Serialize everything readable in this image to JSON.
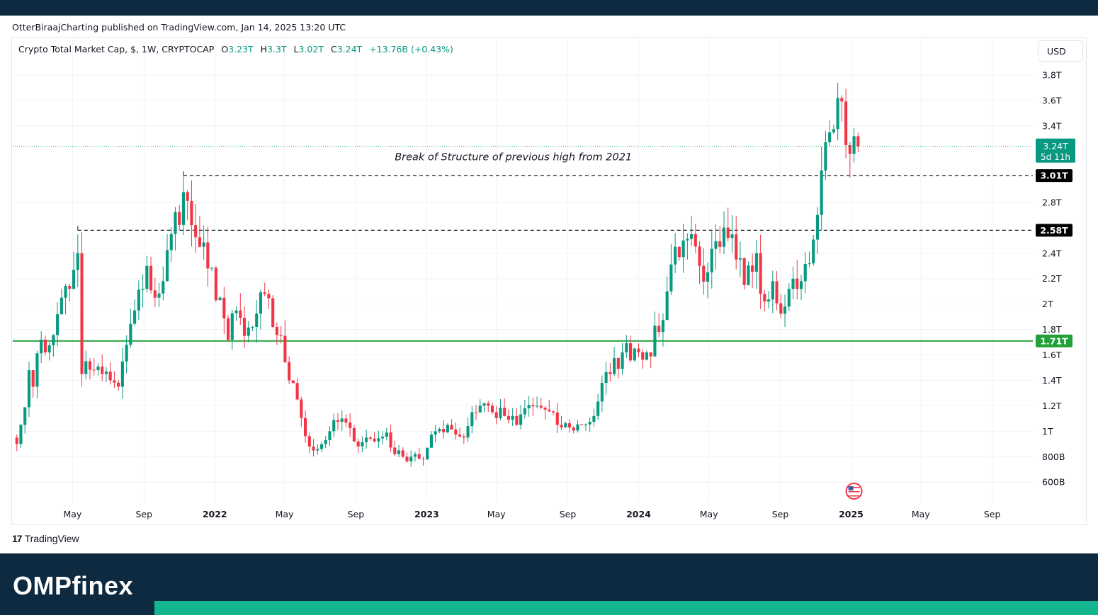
{
  "header": {
    "published_line": "OtterBiraajCharting published on TradingView.com, Jan 14, 2025 13:20 UTC"
  },
  "legend": {
    "symbol": "Crypto Total Market Cap, $, 1W, CRYPTOCAP",
    "open_label": "O",
    "open": "3.23T",
    "high_label": "H",
    "high": "3.3T",
    "low_label": "L",
    "low": "3.02T",
    "close_label": "C",
    "close": "3.24T",
    "change": "+13.76B (+0.43%)"
  },
  "currency_button": "USD",
  "tradingview_logo": {
    "mark": "17",
    "text": "TradingView"
  },
  "brand": {
    "text": "OMPfinex"
  },
  "colors": {
    "up": "#089981",
    "down": "#f23645",
    "support": "#22a139",
    "frame": "#0e2a40",
    "brand_accent": "#14b58f",
    "grid": "#f0f3fa"
  },
  "chart_data": {
    "type": "candlestick",
    "timeframe": "1W",
    "y_unit": "USD",
    "yticks": [
      {
        "value": 3.8,
        "label": "3.8T"
      },
      {
        "value": 3.6,
        "label": "3.6T"
      },
      {
        "value": 3.4,
        "label": "3.4T"
      },
      {
        "value": 2.8,
        "label": "2.8T"
      },
      {
        "value": 2.4,
        "label": "2.4T"
      },
      {
        "value": 2.2,
        "label": "2.2T"
      },
      {
        "value": 2.0,
        "label": "2T"
      },
      {
        "value": 1.8,
        "label": "1.8T"
      },
      {
        "value": 1.6,
        "label": "1.6T"
      },
      {
        "value": 1.4,
        "label": "1.4T"
      },
      {
        "value": 1.2,
        "label": "1.2T"
      },
      {
        "value": 1.0,
        "label": "1T"
      },
      {
        "value": 0.8,
        "label": "800B"
      },
      {
        "value": 0.6,
        "label": "600B"
      }
    ],
    "ylim": [
      0.44,
      3.99
    ],
    "xticks": [
      {
        "date": "2021-05",
        "label": "May",
        "bold": false
      },
      {
        "date": "2021-09",
        "label": "Sep",
        "bold": false
      },
      {
        "date": "2022-01",
        "label": "2022",
        "bold": true
      },
      {
        "date": "2022-05",
        "label": "May",
        "bold": false
      },
      {
        "date": "2022-09",
        "label": "Sep",
        "bold": false
      },
      {
        "date": "2023-01",
        "label": "2023",
        "bold": true
      },
      {
        "date": "2023-05",
        "label": "May",
        "bold": false
      },
      {
        "date": "2023-09",
        "label": "Sep",
        "bold": false
      },
      {
        "date": "2024-01",
        "label": "2024",
        "bold": true
      },
      {
        "date": "2024-05",
        "label": "May",
        "bold": false
      },
      {
        "date": "2024-09",
        "label": "Sep",
        "bold": false
      },
      {
        "date": "2025-01",
        "label": "2025",
        "bold": true
      },
      {
        "date": "2025-05",
        "label": "May",
        "bold": false
      },
      {
        "date": "2025-09",
        "label": "Sep",
        "bold": false
      }
    ],
    "xlim": [
      "2021-01-18",
      "2025-11-10"
    ],
    "current_price": {
      "value": 3.24,
      "label": "3.24T",
      "countdown": "5d 11h"
    },
    "levels": [
      {
        "value": 3.01,
        "label": "3.01T",
        "style": "dashed",
        "from": "2021-11-08"
      },
      {
        "value": 2.58,
        "label": "2.58T",
        "style": "dashed",
        "from": "2021-05-10"
      },
      {
        "value": 1.71,
        "label": "1.71T",
        "style": "solid",
        "from": "2021-01-18"
      }
    ],
    "annotation": {
      "text": "Break of Structure of previous high from 2021",
      "date": "2023-05-01",
      "value": 3.13
    },
    "event_flag": {
      "date": "2025-01-06",
      "label": "US economic event"
    },
    "anchors": [
      [
        "2021-01-18",
        0.95
      ],
      [
        "2021-01-25",
        0.9
      ],
      [
        "2021-02-01",
        1.05
      ],
      [
        "2021-02-15",
        1.48
      ],
      [
        "2021-02-22",
        1.35
      ],
      [
        "2021-03-08",
        1.72
      ],
      [
        "2021-03-15",
        1.62
      ],
      [
        "2021-04-05",
        1.92
      ],
      [
        "2021-04-12",
        2.05
      ],
      [
        "2021-04-26",
        2.12
      ],
      [
        "2021-05-10",
        2.4
      ],
      [
        "2021-05-17",
        1.45
      ],
      [
        "2021-05-24",
        1.55
      ],
      [
        "2021-06-07",
        1.48
      ],
      [
        "2021-06-21",
        1.45
      ],
      [
        "2021-07-05",
        1.4
      ],
      [
        "2021-07-19",
        1.35
      ],
      [
        "2021-08-02",
        1.68
      ],
      [
        "2021-08-16",
        1.95
      ],
      [
        "2021-08-30",
        2.12
      ],
      [
        "2021-09-06",
        2.3
      ],
      [
        "2021-09-20",
        2.05
      ],
      [
        "2021-10-04",
        2.18
      ],
      [
        "2021-10-18",
        2.55
      ],
      [
        "2021-11-08",
        2.88
      ],
      [
        "2021-11-22",
        2.62
      ],
      [
        "2021-12-06",
        2.45
      ],
      [
        "2021-12-20",
        2.28
      ],
      [
        "2022-01-10",
        2.05
      ],
      [
        "2022-01-24",
        1.72
      ],
      [
        "2022-02-07",
        1.95
      ],
      [
        "2022-02-21",
        1.75
      ],
      [
        "2022-03-07",
        1.82
      ],
      [
        "2022-03-28",
        2.08
      ],
      [
        "2022-04-11",
        1.82
      ],
      [
        "2022-04-25",
        1.75
      ],
      [
        "2022-05-09",
        1.4
      ],
      [
        "2022-05-23",
        1.25
      ],
      [
        "2022-06-13",
        0.88
      ],
      [
        "2022-06-27",
        0.86
      ],
      [
        "2022-07-18",
        1.0
      ],
      [
        "2022-08-08",
        1.1
      ],
      [
        "2022-08-29",
        0.92
      ],
      [
        "2022-09-19",
        0.95
      ],
      [
        "2022-10-03",
        0.92
      ],
      [
        "2022-10-24",
        0.99
      ],
      [
        "2022-11-07",
        0.82
      ],
      [
        "2022-11-21",
        0.8
      ],
      [
        "2022-12-12",
        0.82
      ],
      [
        "2022-12-26",
        0.78
      ],
      [
        "2023-01-16",
        1.0
      ],
      [
        "2023-02-06",
        1.05
      ],
      [
        "2023-03-06",
        0.95
      ],
      [
        "2023-03-20",
        1.15
      ],
      [
        "2023-04-10",
        1.22
      ],
      [
        "2023-04-24",
        1.15
      ],
      [
        "2023-05-15",
        1.12
      ],
      [
        "2023-06-05",
        1.05
      ],
      [
        "2023-06-19",
        1.18
      ],
      [
        "2023-07-10",
        1.2
      ],
      [
        "2023-07-24",
        1.17
      ],
      [
        "2023-08-14",
        1.05
      ],
      [
        "2023-09-04",
        1.03
      ],
      [
        "2023-09-25",
        1.05
      ],
      [
        "2023-10-16",
        1.12
      ],
      [
        "2023-10-30",
        1.38
      ],
      [
        "2023-11-13",
        1.45
      ],
      [
        "2023-12-04",
        1.62
      ],
      [
        "2023-12-25",
        1.65
      ],
      [
        "2024-01-15",
        1.62
      ],
      [
        "2024-02-05",
        1.78
      ],
      [
        "2024-02-19",
        2.1
      ],
      [
        "2024-03-04",
        2.45
      ],
      [
        "2024-03-18",
        2.5
      ],
      [
        "2024-04-01",
        2.55
      ],
      [
        "2024-04-15",
        2.3
      ],
      [
        "2024-04-29",
        2.25
      ],
      [
        "2024-05-20",
        2.45
      ],
      [
        "2024-06-03",
        2.52
      ],
      [
        "2024-06-17",
        2.35
      ],
      [
        "2024-07-01",
        2.15
      ],
      [
        "2024-07-22",
        2.4
      ],
      [
        "2024-08-05",
        2.02
      ],
      [
        "2024-08-19",
        2.18
      ],
      [
        "2024-09-09",
        1.98
      ],
      [
        "2024-09-23",
        2.2
      ],
      [
        "2024-10-07",
        2.18
      ],
      [
        "2024-10-21",
        2.32
      ],
      [
        "2024-11-04",
        2.7
      ],
      [
        "2024-11-11",
        3.05
      ],
      [
        "2024-11-25",
        3.35
      ],
      [
        "2024-12-09",
        3.62
      ],
      [
        "2024-12-23",
        3.25
      ],
      [
        "2025-01-06",
        3.32
      ],
      [
        "2025-01-13",
        3.24
      ]
    ]
  }
}
